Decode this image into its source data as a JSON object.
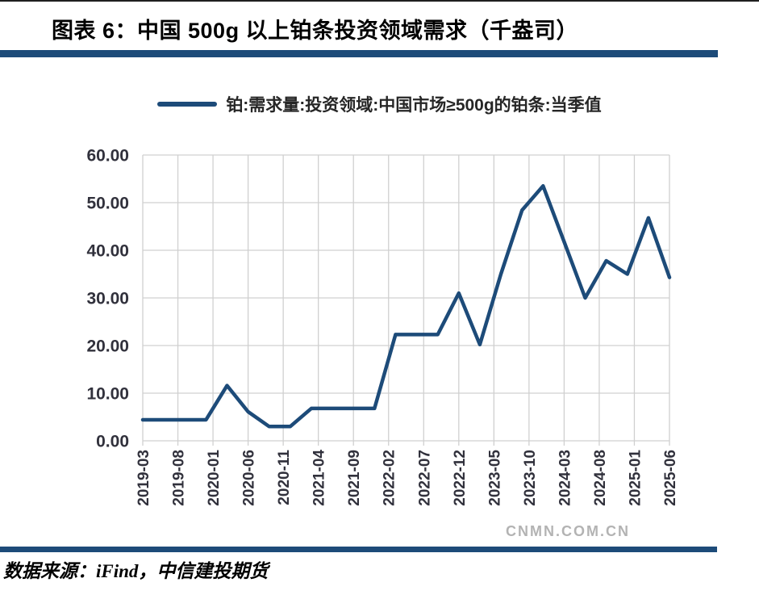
{
  "page": {
    "title": "图表 6：中国 500g 以上铂条投资领域需求（千盎司）",
    "accent_color": "#1d4b79"
  },
  "legend": {
    "label": "铂:需求量:投资领域:中国市场≥500g的铂条:当季值"
  },
  "chart_data": {
    "type": "line",
    "title": "中国 500g 以上铂条投资领域需求（千盎司）",
    "series": [
      {
        "name": "铂:需求量:投资领域:中国市场≥500g的铂条:当季值",
        "x": [
          "2019-03",
          "2019-06",
          "2019-09",
          "2019-12",
          "2020-03",
          "2020-06",
          "2020-09",
          "2020-12",
          "2021-03",
          "2021-06",
          "2021-09",
          "2021-12",
          "2022-03",
          "2022-06",
          "2022-09",
          "2022-12",
          "2023-03",
          "2023-06",
          "2023-09",
          "2023-12",
          "2024-03",
          "2024-06",
          "2024-09",
          "2024-12",
          "2025-03",
          "2025-06"
        ],
        "values": [
          4.4,
          4.4,
          4.4,
          4.4,
          11.6,
          6.1,
          3.0,
          3.0,
          6.8,
          6.8,
          6.8,
          6.8,
          22.3,
          22.3,
          22.3,
          31.0,
          20.2,
          35.0,
          48.4,
          53.5,
          41.8,
          30.0,
          37.8,
          35.0,
          46.8,
          34.3
        ]
      }
    ],
    "x_tick_labels": [
      "2019-03",
      "2019-08",
      "2020-01",
      "2020-06",
      "2020-11",
      "2021-04",
      "2021-09",
      "2022-02",
      "2022-07",
      "2022-12",
      "2023-05",
      "2023-10",
      "2024-03",
      "2024-08",
      "2025-01",
      "2025-06"
    ],
    "y_tick_labels": [
      "0.00",
      "10.00",
      "20.00",
      "30.00",
      "40.00",
      "50.00",
      "60.00"
    ],
    "ylim": [
      0,
      60
    ],
    "grid": true,
    "legend_position": "top",
    "line_color": "#1d4b79",
    "grid_color": "#d0d0d0",
    "axis_label_color": "#31313c"
  },
  "watermark": {
    "text": "CNMN.COM.CN"
  },
  "footer": {
    "source": "数据来源：iFind，中信建投期货"
  }
}
